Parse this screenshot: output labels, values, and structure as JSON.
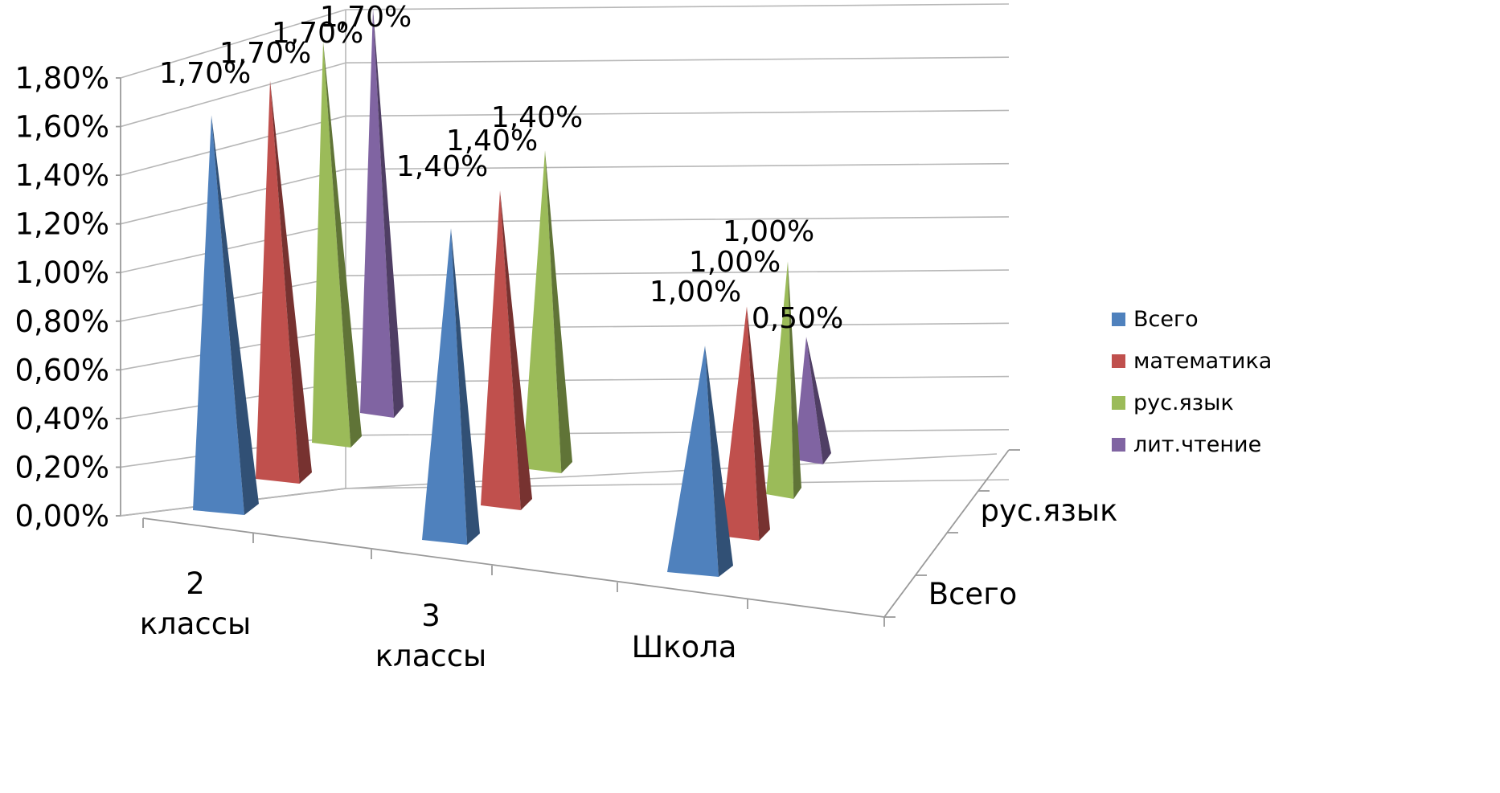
{
  "chart_data": {
    "type": "bar",
    "shape": "3d-pyramid",
    "categories": [
      "2 классы",
      "3 классы",
      "Школа"
    ],
    "category_lines": [
      [
        "2",
        "классы"
      ],
      [
        "3",
        "классы"
      ],
      [
        "Школа"
      ]
    ],
    "depth_labels": [
      "Всего",
      "рус.язык"
    ],
    "series": [
      {
        "name": "Всего",
        "color": "#4f81bd",
        "values": [
          0.017,
          0.014,
          0.01
        ]
      },
      {
        "name": "математика",
        "color": "#c0504d",
        "values": [
          0.017,
          0.014,
          0.01
        ]
      },
      {
        "name": "рус.язык",
        "color": "#9bbb59",
        "values": [
          0.017,
          0.014,
          0.01
        ]
      },
      {
        "name": "лит.чтение",
        "color": "#8064a2",
        "values": [
          0.017,
          null,
          0.005
        ]
      }
    ],
    "data_labels": [
      [
        "1,70%",
        "1,40%",
        "1,00%"
      ],
      [
        "1,70%",
        "1,40%",
        "1,00%"
      ],
      [
        "1,70%",
        "1,40%",
        "1,00%"
      ],
      [
        "1,70%",
        null,
        "0,50%"
      ]
    ],
    "y_ticks": [
      "0,00%",
      "0,20%",
      "0,40%",
      "0,60%",
      "0,80%",
      "1,00%",
      "1,20%",
      "1,40%",
      "1,60%",
      "1,80%"
    ],
    "ylim": [
      0,
      0.018
    ],
    "grid": true,
    "legend_position": "right",
    "title": "",
    "xlabel": "",
    "ylabel": ""
  }
}
